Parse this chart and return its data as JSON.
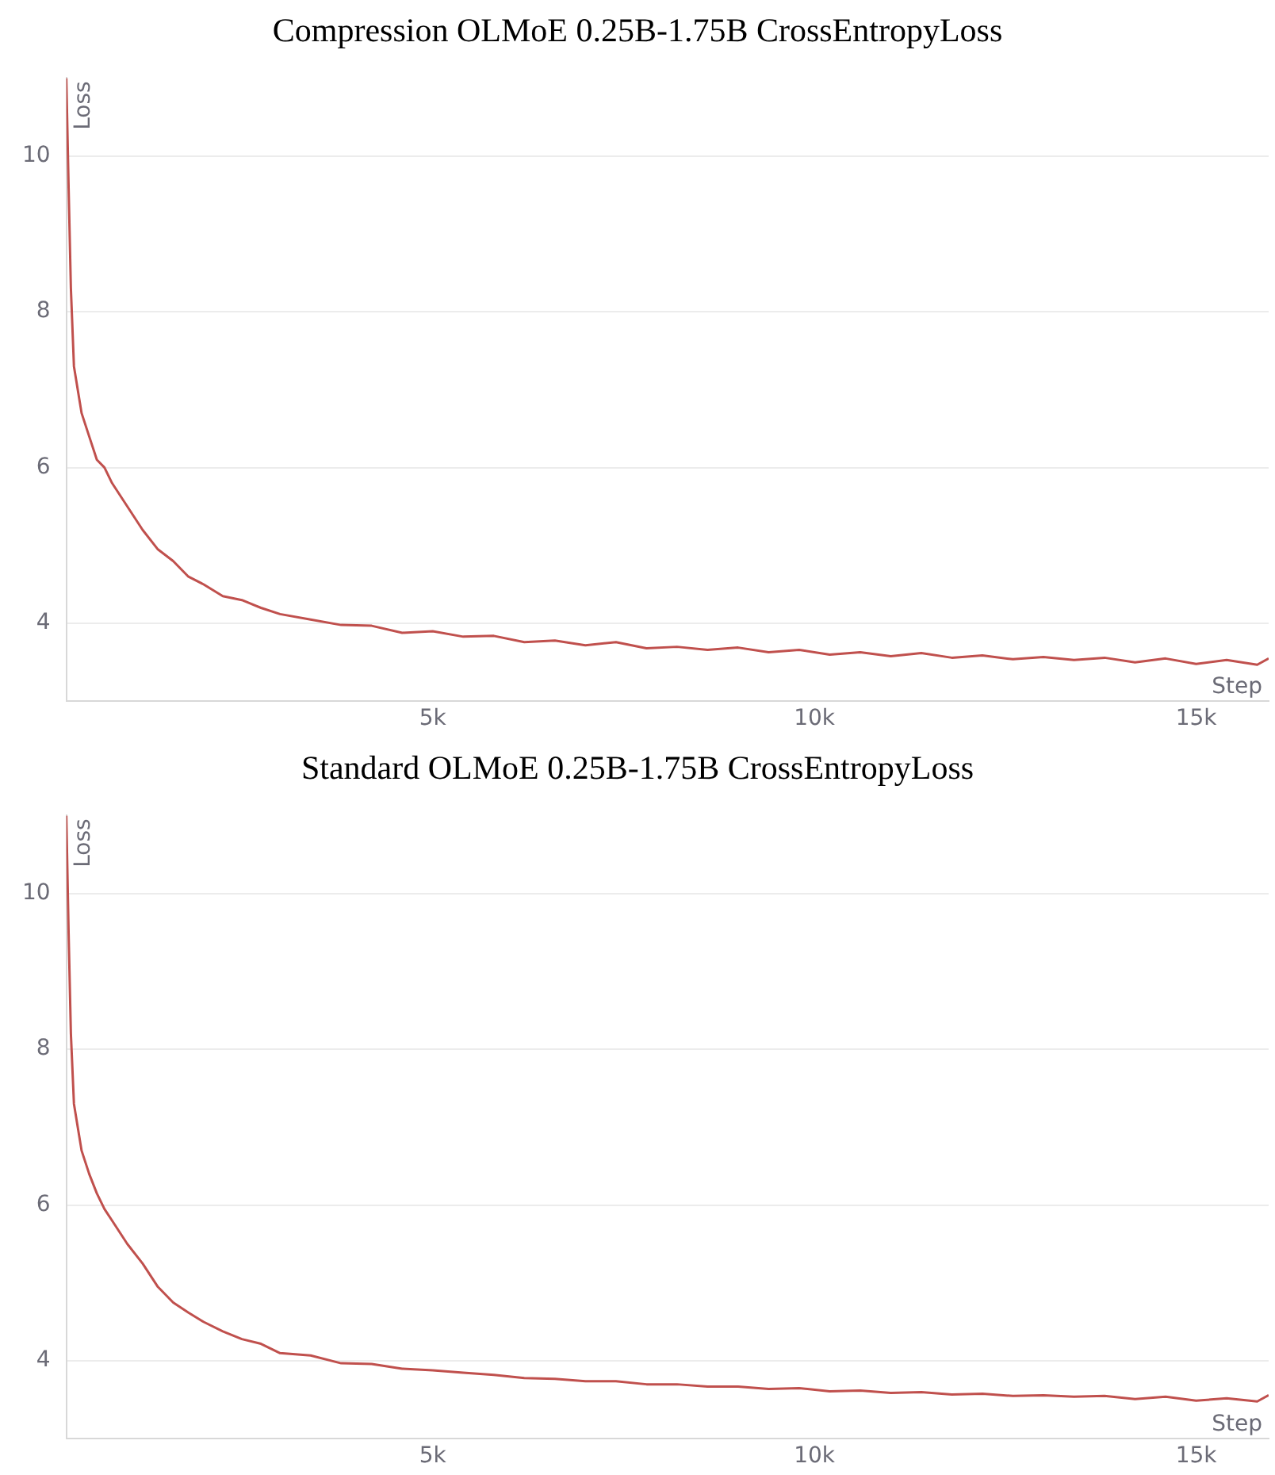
{
  "chart_data": [
    {
      "type": "line",
      "title": "Compression OLMoE 0.25B-1.75B CrossEntropyLoss",
      "xlabel": "Step",
      "ylabel": "Loss",
      "xlim": [
        200,
        15950
      ],
      "ylim": [
        3,
        11
      ],
      "xticks": [
        {
          "value": 5000,
          "label": "5k"
        },
        {
          "value": 10000,
          "label": "10k"
        },
        {
          "value": 15000,
          "label": "15k"
        }
      ],
      "yticks": [
        4,
        6,
        8,
        10
      ],
      "grid": "y",
      "legend": false,
      "marker": "none",
      "x": [
        200,
        230,
        260,
        300,
        350,
        400,
        500,
        600,
        700,
        800,
        1000,
        1200,
        1400,
        1600,
        1800,
        2000,
        2250,
        2500,
        2750,
        3000,
        3400,
        3800,
        4200,
        4600,
        5000,
        5400,
        5800,
        6200,
        6600,
        7000,
        7400,
        7800,
        8200,
        8600,
        9000,
        9400,
        9800,
        10200,
        10600,
        11000,
        11400,
        11800,
        12200,
        12600,
        13000,
        13400,
        13800,
        14200,
        14600,
        15000,
        15400,
        15800,
        15950
      ],
      "series": [
        {
          "color": "#c0504d",
          "values": [
            11.0,
            9.6,
            8.3,
            7.3,
            7.0,
            6.7,
            6.4,
            6.1,
            6.0,
            5.8,
            5.5,
            5.2,
            4.95,
            4.8,
            4.6,
            4.5,
            4.35,
            4.3,
            4.2,
            4.12,
            4.05,
            3.98,
            3.97,
            3.88,
            3.9,
            3.83,
            3.84,
            3.76,
            3.78,
            3.72,
            3.76,
            3.68,
            3.7,
            3.66,
            3.69,
            3.63,
            3.66,
            3.6,
            3.63,
            3.58,
            3.62,
            3.56,
            3.59,
            3.54,
            3.57,
            3.53,
            3.56,
            3.5,
            3.55,
            3.48,
            3.53,
            3.47,
            3.55
          ]
        }
      ]
    },
    {
      "type": "line",
      "title": "Standard OLMoE 0.25B-1.75B CrossEntropyLoss",
      "xlabel": "Step",
      "ylabel": "Loss",
      "xlim": [
        200,
        15950
      ],
      "ylim": [
        3,
        11
      ],
      "xticks": [
        {
          "value": 5000,
          "label": "5k"
        },
        {
          "value": 10000,
          "label": "10k"
        },
        {
          "value": 15000,
          "label": "15k"
        }
      ],
      "yticks": [
        4,
        6,
        8,
        10
      ],
      "grid": "y",
      "legend": false,
      "marker": "none",
      "x": [
        200,
        230,
        260,
        300,
        350,
        400,
        500,
        600,
        700,
        800,
        1000,
        1200,
        1400,
        1600,
        1800,
        2000,
        2250,
        2500,
        2750,
        3000,
        3400,
        3800,
        4200,
        4600,
        5000,
        5400,
        5800,
        6200,
        6600,
        7000,
        7400,
        7800,
        8200,
        8600,
        9000,
        9400,
        9800,
        10200,
        10600,
        11000,
        11400,
        11800,
        12200,
        12600,
        13000,
        13400,
        13800,
        14200,
        14600,
        15000,
        15400,
        15800,
        15950
      ],
      "series": [
        {
          "color": "#c0504d",
          "values": [
            11.0,
            9.5,
            8.2,
            7.3,
            7.0,
            6.7,
            6.4,
            6.15,
            5.95,
            5.8,
            5.5,
            5.25,
            4.95,
            4.75,
            4.62,
            4.5,
            4.38,
            4.28,
            4.22,
            4.1,
            4.07,
            3.97,
            3.96,
            3.9,
            3.88,
            3.85,
            3.82,
            3.78,
            3.77,
            3.74,
            3.74,
            3.7,
            3.7,
            3.67,
            3.67,
            3.64,
            3.65,
            3.61,
            3.62,
            3.59,
            3.6,
            3.57,
            3.58,
            3.55,
            3.56,
            3.54,
            3.55,
            3.51,
            3.54,
            3.49,
            3.52,
            3.48,
            3.56
          ]
        }
      ]
    }
  ]
}
